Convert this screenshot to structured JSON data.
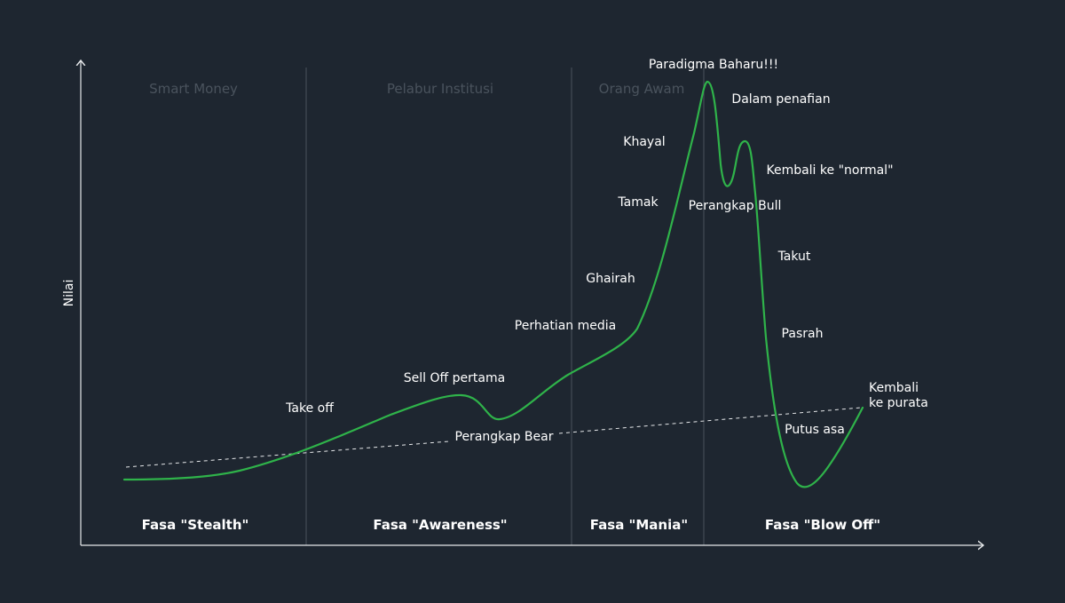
{
  "diagram": {
    "y_axis_label": "Nilai",
    "audiences": [
      "Smart Money",
      "Pelabur Institusi",
      "Orang Awam"
    ],
    "phases": [
      "Fasa \"Stealth\"",
      "Fasa \"Awareness\"",
      "Fasa \"Mania\"",
      "Fasa \"Blow Off\""
    ],
    "stage_labels": {
      "take_off": "Take off",
      "sell_off": "Sell Off pertama",
      "bear_trap": "Perangkap Bear",
      "media": "Perhatian media",
      "ghairah": "Ghairah",
      "tamak": "Tamak",
      "khayal": "Khayal",
      "paradigma": "Paradigma Baharu!!!",
      "denial": "Dalam penafian",
      "normal": "Kembali ke \"normal\"",
      "bull_trap": "Perangkap Bull",
      "takut": "Takut",
      "pasrah": "Pasrah",
      "putus_asa": "Putus asa",
      "mean_line1": "Kembali",
      "mean_line2": "ke purata"
    },
    "colors": {
      "background": "#1e2630",
      "curve": "#2fb34a",
      "axis": "#e6e8ea",
      "divider": "#4a535d",
      "audience_text": "#4a535d",
      "text": "#ffffff"
    }
  }
}
